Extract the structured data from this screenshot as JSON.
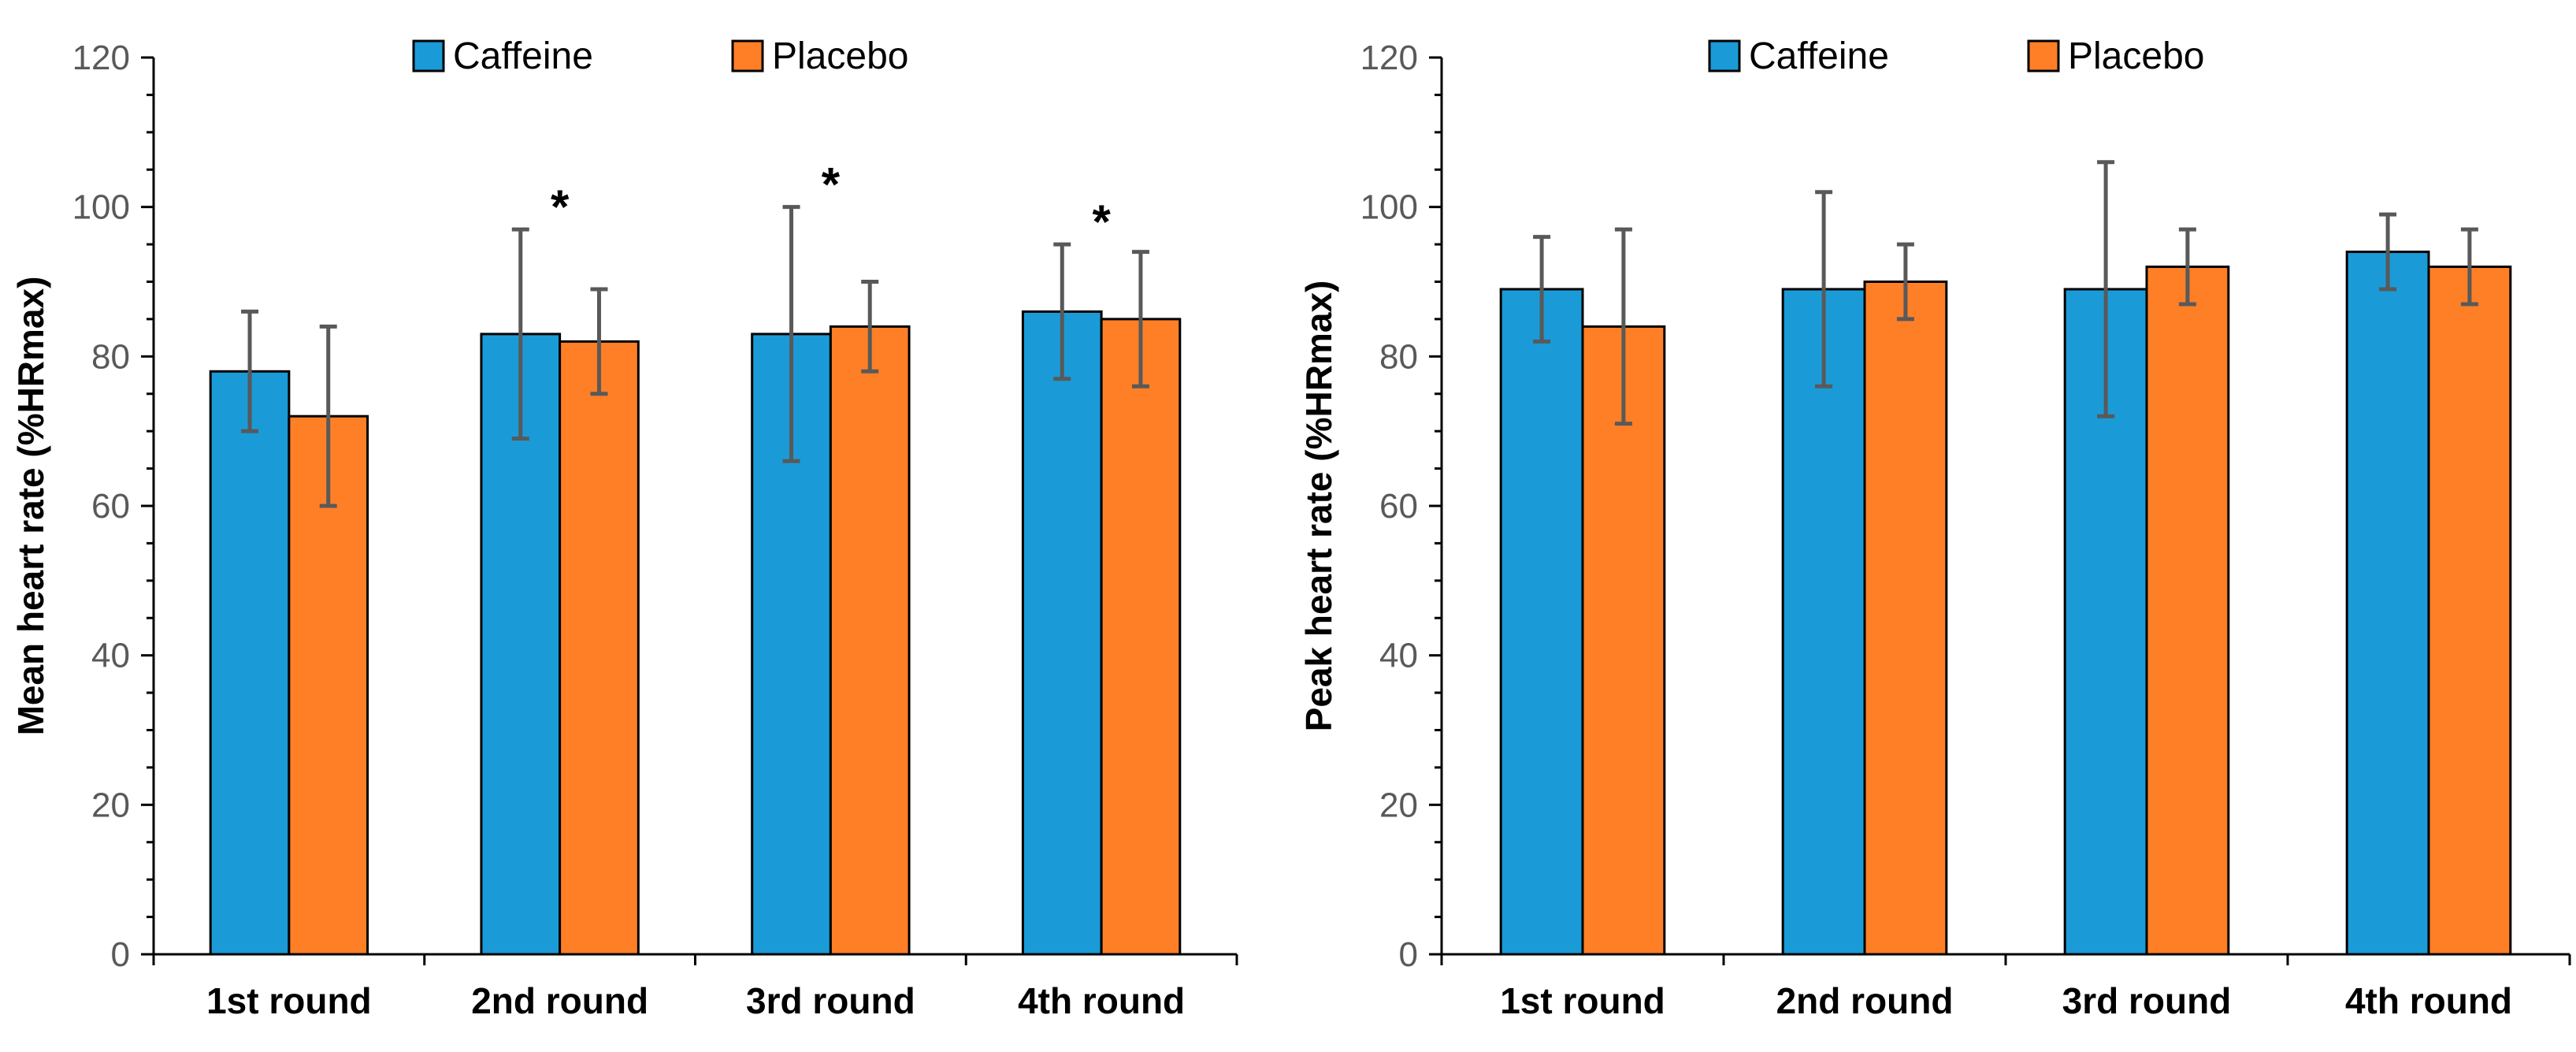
{
  "chart_data": [
    {
      "type": "bar",
      "title": "",
      "xlabel": "",
      "ylabel": "Mean heart rate (%HRmax)",
      "ylim": [
        0,
        120
      ],
      "yticks": [
        0,
        20,
        40,
        60,
        80,
        100,
        120
      ],
      "grid": false,
      "legend_position": "top-center",
      "categories": [
        "1st round",
        "2nd round",
        "3rd round",
        "4th round"
      ],
      "series": [
        {
          "name": "Caffeine",
          "color": "#1a9bd7",
          "values": [
            78,
            83,
            83,
            86
          ],
          "errors": [
            8,
            14,
            17,
            9
          ]
        },
        {
          "name": "Placebo",
          "color": "#ff7f27",
          "values": [
            72,
            82,
            84,
            85
          ],
          "errors": [
            12,
            7,
            6,
            9
          ]
        }
      ],
      "annotations": [
        {
          "category": "2nd round",
          "text": "*"
        },
        {
          "category": "3rd round",
          "text": "*"
        },
        {
          "category": "4th round",
          "text": "*"
        }
      ]
    },
    {
      "type": "bar",
      "title": "",
      "xlabel": "",
      "ylabel": "Peak heart rate (%HRmax)",
      "ylim": [
        0,
        120
      ],
      "yticks": [
        0,
        20,
        40,
        60,
        80,
        100,
        120
      ],
      "grid": false,
      "legend_position": "top-center",
      "categories": [
        "1st round",
        "2nd round",
        "3rd round",
        "4th round"
      ],
      "series": [
        {
          "name": "Caffeine",
          "color": "#1a9bd7",
          "values": [
            89,
            89,
            89,
            94
          ],
          "errors": [
            7,
            13,
            17,
            5
          ]
        },
        {
          "name": "Placebo",
          "color": "#ff7f27",
          "values": [
            84,
            90,
            92,
            92
          ],
          "errors": [
            13,
            5,
            5,
            5
          ]
        }
      ],
      "annotations": []
    }
  ],
  "colors": {
    "axis": "#000000",
    "tick_label": "#595959",
    "error_bar": "#595959",
    "bar_border": "#000000"
  }
}
